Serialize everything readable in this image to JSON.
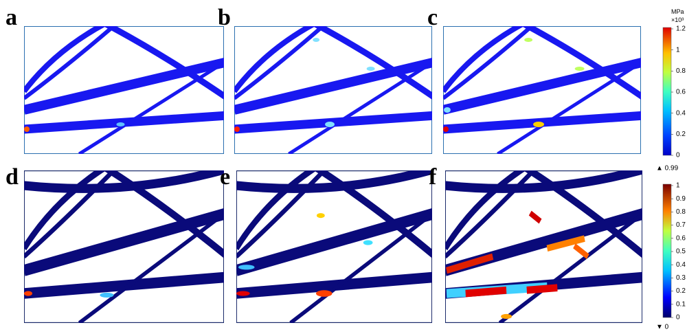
{
  "panels": [
    {
      "label": "a"
    },
    {
      "label": "b"
    },
    {
      "label": "c"
    },
    {
      "label": "d"
    },
    {
      "label": "e"
    },
    {
      "label": "f"
    }
  ],
  "colorbars": [
    {
      "unit": "MPa",
      "scale": "×10³",
      "ticks": [
        "1.2",
        "1",
        "0.8",
        "0.6",
        "0.4",
        "0.2",
        "0"
      ]
    },
    {
      "max_marker": "▲ 0.99",
      "min_marker": "▼ 0",
      "ticks": [
        "1",
        "0.9",
        "0.8",
        "0.7",
        "0.6",
        "0.5",
        "0.4",
        "0.3",
        "0.2",
        "0.1",
        "0"
      ]
    }
  ]
}
